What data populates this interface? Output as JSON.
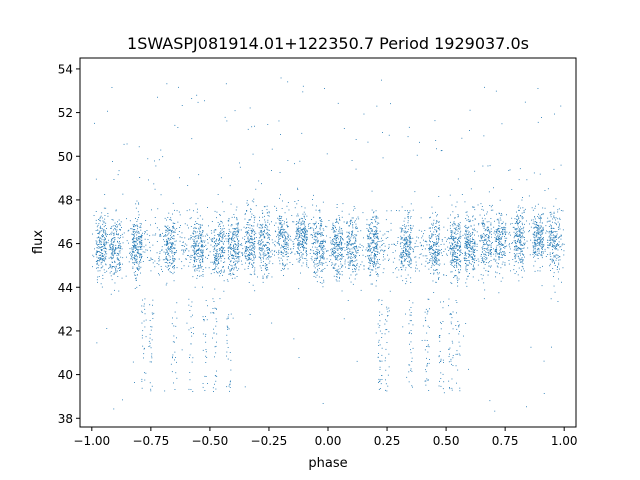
{
  "chart_data": {
    "type": "scatter",
    "title": "1SWASPJ081914.01+122350.7 Period 1929037.0s",
    "xlabel": "phase",
    "ylabel": "flux",
    "xlim": [
      -1.05,
      1.05
    ],
    "ylim": [
      37.6,
      54.5
    ],
    "x_ticks": [
      -1.0,
      -0.75,
      -0.5,
      -0.25,
      0.0,
      0.25,
      0.5,
      0.75,
      1.0
    ],
    "x_tick_labels": [
      "−1.00",
      "−0.75",
      "−0.50",
      "−0.25",
      "0.00",
      "0.25",
      "0.50",
      "0.75",
      "1.00"
    ],
    "y_ticks": [
      38,
      40,
      42,
      44,
      46,
      48,
      50,
      52,
      54
    ],
    "y_tick_labels": [
      "38",
      "40",
      "42",
      "44",
      "46",
      "48",
      "50",
      "52",
      "54"
    ],
    "grid": false,
    "legend": "none",
    "marker_color": "#1f77b4",
    "series": [
      {
        "folded_profile": {
          "phase": [
            -1.0,
            -0.9,
            -0.8,
            -0.7,
            -0.6,
            -0.5,
            -0.4,
            -0.3,
            -0.2,
            -0.1,
            0.0,
            0.1,
            0.2,
            0.3,
            0.4,
            0.5,
            0.6,
            0.7,
            0.8,
            0.9,
            1.0
          ],
          "median_flux": [
            45.8,
            45.8,
            45.9,
            45.9,
            45.8,
            45.8,
            45.9,
            46.0,
            46.2,
            46.3,
            45.8,
            45.8,
            45.9,
            45.9,
            45.8,
            45.8,
            45.9,
            46.0,
            46.2,
            46.3,
            45.8
          ],
          "scatter": [
            0.75,
            0.75,
            0.75,
            0.7,
            0.65,
            0.7,
            0.75,
            0.75,
            0.7,
            0.65,
            0.75,
            0.75,
            0.75,
            0.7,
            0.65,
            0.7,
            0.75,
            0.75,
            0.7,
            0.65,
            0.75
          ]
        },
        "dense_phase_clusters": [
          -0.96,
          -0.9,
          -0.81,
          -0.67,
          -0.55,
          -0.46,
          -0.4,
          -0.33,
          -0.27,
          -0.19,
          -0.11,
          -0.04,
          0.04,
          0.1,
          0.19,
          0.33,
          0.45,
          0.54,
          0.6,
          0.67,
          0.73,
          0.81,
          0.89,
          0.96
        ],
        "low_outlier_phases": [
          -0.78,
          -0.75,
          -0.65,
          -0.58,
          -0.52,
          -0.48,
          -0.42,
          0.22,
          0.25,
          0.35,
          0.42,
          0.48,
          0.52,
          0.55
        ],
        "low_outlier_flux_range": [
          39.2,
          43.5
        ],
        "high_outlier_flux_range": [
          47.5,
          53.8
        ]
      }
    ]
  }
}
